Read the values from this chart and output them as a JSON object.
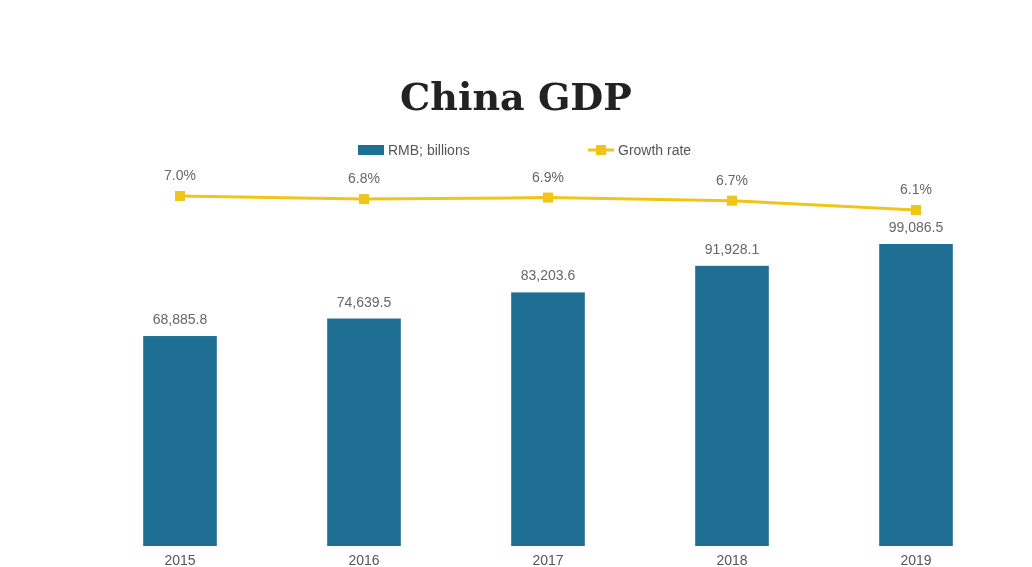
{
  "chart_data": [
    {
      "type": "line",
      "title": "China GDP",
      "categories": [
        null,
        null,
        null,
        null,
        null
      ],
      "series": [
        {
          "name": "Growth rate",
          "color": "#f0c419",
          "values": [
            7.0,
            6.8,
            6.9,
            6.7,
            6.1
          ],
          "value_labels": [
            "7.0%",
            "6.8%",
            "6.9%",
            "6.7%",
            "6.1%"
          ]
        }
      ],
      "legend": "top",
      "marker": "square",
      "line_style": "solid"
    },
    {
      "type": "bar",
      "categories": [
        "2015",
        "2016",
        "2017",
        "2018",
        "2019"
      ],
      "series": [
        {
          "name": "RMB; billions",
          "color": "#1f6e93",
          "values": [
            68885.8,
            74639.5,
            83203.6,
            91928.1,
            99086.5
          ],
          "value_labels": [
            "68,885.8",
            "74,639.5",
            "83,203.6",
            "91,928.1",
            "99,086.5"
          ]
        }
      ],
      "legend": "top"
    }
  ]
}
